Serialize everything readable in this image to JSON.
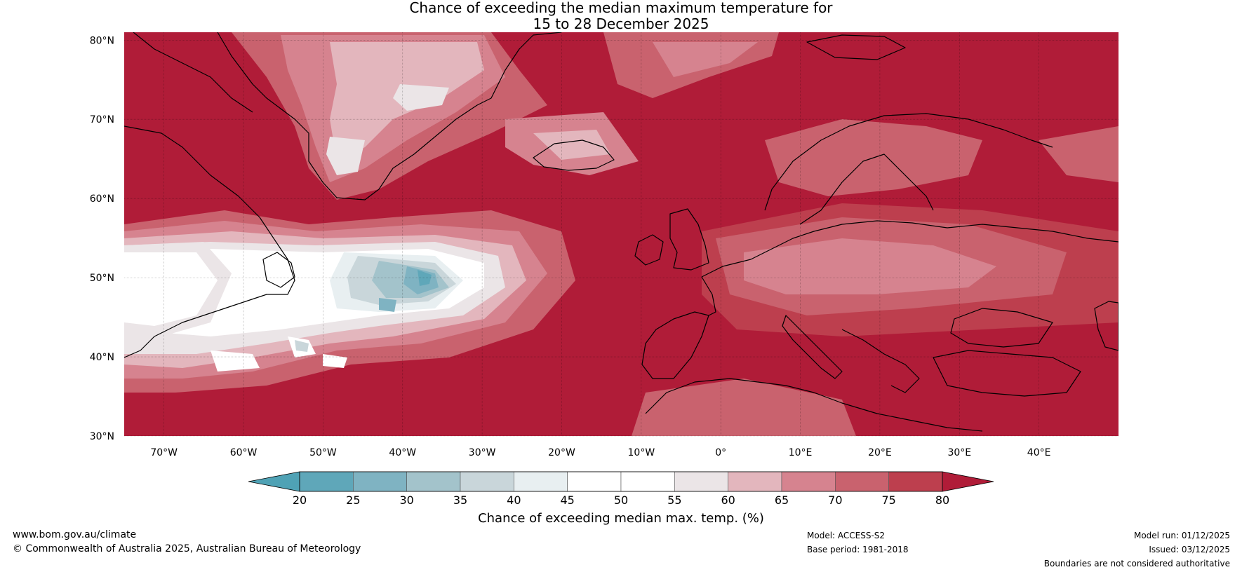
{
  "title": {
    "line1": "Chance of exceeding the median maximum temperature for",
    "line2": "15 to 28 December 2025"
  },
  "map": {
    "lat_labels": [
      "80°N",
      "70°N",
      "60°N",
      "50°N",
      "40°N",
      "30°N"
    ],
    "lat_values": [
      80,
      70,
      60,
      50,
      40,
      30
    ],
    "lon_labels": [
      "70°W",
      "60°W",
      "50°W",
      "40°W",
      "30°W",
      "20°W",
      "10°W",
      "0°",
      "10°E",
      "20°E",
      "30°E",
      "40°E"
    ],
    "lon_values": [
      -70,
      -60,
      -50,
      -40,
      -30,
      -20,
      -10,
      0,
      10,
      20,
      30,
      40
    ],
    "lon_range": [
      -75,
      50
    ],
    "lat_range": [
      30,
      81
    ],
    "base_color": "#b01c38"
  },
  "colorbar": {
    "ticks": [
      "20",
      "25",
      "30",
      "35",
      "40",
      "45",
      "50",
      "55",
      "60",
      "65",
      "70",
      "75",
      "80"
    ],
    "colors": [
      "#5fa7b9",
      "#7fb3c2",
      "#a3c3cb",
      "#c9d6da",
      "#e8eff1",
      "#ffffff",
      "#ffffff",
      "#ebe5e7",
      "#e3b6bd",
      "#d6838f",
      "#c9626e",
      "#bd3f4e",
      "#b01c38"
    ],
    "label": "Chance of exceeding median max. temp. (%)"
  },
  "footer": {
    "website": "www.bom.gov.au/climate",
    "copyright": "© Commonwealth of Australia 2025, Australian Bureau of Meteorology",
    "model": "Model: ACCESS-S2",
    "base_period": "Base period: 1981-2018",
    "model_run": "Model run: 01/12/2025",
    "issued": "Issued: 03/12/2025",
    "disclaimer": "Boundaries are not considered authoritative"
  }
}
